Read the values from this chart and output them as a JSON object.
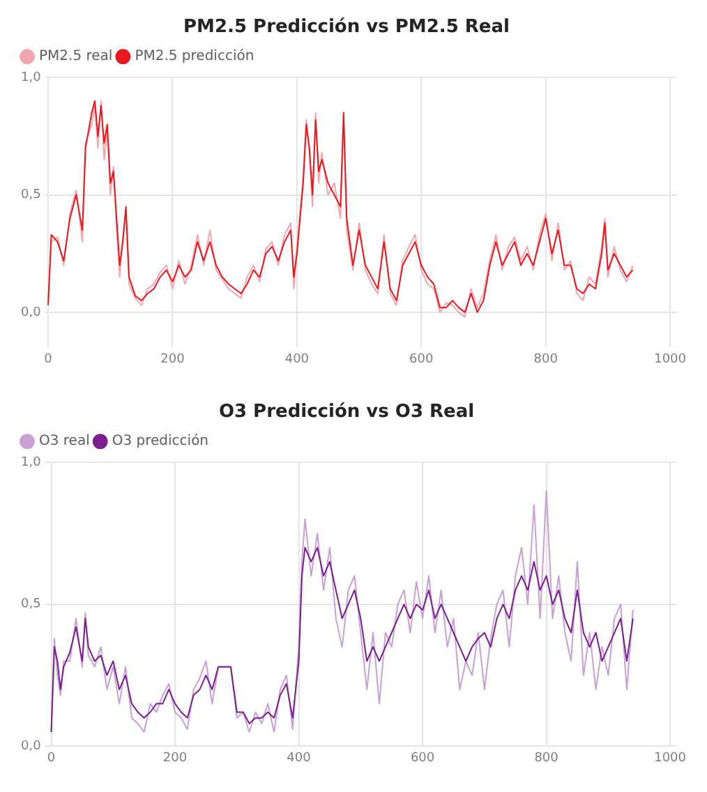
{
  "chart_data": [
    {
      "type": "line",
      "title": "PM2.5 Predicción vs PM2.5 Real",
      "legend": "top left",
      "grid": true,
      "marker": "none",
      "line_style": "solid",
      "x": [
        0,
        5,
        15,
        25,
        35,
        45,
        55,
        60,
        70,
        75,
        80,
        85,
        90,
        95,
        100,
        105,
        110,
        115,
        120,
        125,
        130,
        140,
        150,
        160,
        170,
        180,
        190,
        200,
        210,
        220,
        230,
        240,
        250,
        260,
        270,
        280,
        290,
        300,
        310,
        320,
        330,
        340,
        350,
        360,
        370,
        380,
        390,
        395,
        400,
        410,
        415,
        420,
        425,
        430,
        435,
        440,
        450,
        460,
        470,
        475,
        480,
        490,
        500,
        510,
        520,
        530,
        540,
        550,
        560,
        570,
        580,
        590,
        600,
        610,
        620,
        630,
        640,
        650,
        660,
        670,
        680,
        690,
        700,
        710,
        720,
        730,
        740,
        750,
        760,
        770,
        780,
        790,
        800,
        810,
        820,
        830,
        840,
        850,
        860,
        870,
        880,
        890,
        895,
        900,
        910,
        920,
        930,
        940
      ],
      "xlim": [
        -5,
        1010
      ],
      "xticks": [
        0,
        200,
        400,
        600,
        800,
        1000
      ],
      "ylim": [
        -0.15,
        1.0
      ],
      "yticks": [
        {
          "value": 0,
          "label": "0,0"
        },
        {
          "value": 0.5,
          "label": "0,5"
        },
        {
          "value": 1,
          "label": "1,0"
        }
      ],
      "series": [
        {
          "name": "PM2.5 real",
          "color": "#f2a7b0",
          "values": [
            0.05,
            0.3,
            0.32,
            0.2,
            0.42,
            0.52,
            0.3,
            0.72,
            0.8,
            0.88,
            0.7,
            0.9,
            0.65,
            0.78,
            0.5,
            0.62,
            0.35,
            0.15,
            0.32,
            0.42,
            0.12,
            0.06,
            0.03,
            0.1,
            0.12,
            0.17,
            0.2,
            0.1,
            0.22,
            0.12,
            0.2,
            0.33,
            0.2,
            0.35,
            0.18,
            0.14,
            0.1,
            0.08,
            0.06,
            0.15,
            0.2,
            0.13,
            0.27,
            0.3,
            0.2,
            0.33,
            0.38,
            0.1,
            0.28,
            0.58,
            0.82,
            0.68,
            0.45,
            0.85,
            0.55,
            0.68,
            0.5,
            0.55,
            0.4,
            0.83,
            0.35,
            0.18,
            0.38,
            0.18,
            0.12,
            0.08,
            0.33,
            0.08,
            0.03,
            0.22,
            0.28,
            0.33,
            0.18,
            0.12,
            0.1,
            0.0,
            0.04,
            0.03,
            0.0,
            -0.02,
            0.1,
            0.02,
            0.08,
            0.22,
            0.33,
            0.18,
            0.28,
            0.32,
            0.22,
            0.28,
            0.18,
            0.33,
            0.42,
            0.22,
            0.38,
            0.18,
            0.22,
            0.08,
            0.05,
            0.15,
            0.12,
            0.28,
            0.4,
            0.15,
            0.28,
            0.18,
            0.13,
            0.2
          ]
        },
        {
          "name": "PM2.5 predicción",
          "color": "#e8191e",
          "values": [
            0.03,
            0.33,
            0.3,
            0.22,
            0.4,
            0.5,
            0.35,
            0.7,
            0.85,
            0.9,
            0.75,
            0.88,
            0.72,
            0.8,
            0.55,
            0.6,
            0.4,
            0.2,
            0.3,
            0.45,
            0.15,
            0.07,
            0.05,
            0.08,
            0.1,
            0.15,
            0.18,
            0.13,
            0.2,
            0.15,
            0.18,
            0.3,
            0.22,
            0.3,
            0.2,
            0.15,
            0.12,
            0.1,
            0.08,
            0.12,
            0.18,
            0.15,
            0.25,
            0.28,
            0.22,
            0.3,
            0.35,
            0.15,
            0.25,
            0.55,
            0.8,
            0.7,
            0.5,
            0.82,
            0.6,
            0.65,
            0.55,
            0.5,
            0.45,
            0.85,
            0.4,
            0.2,
            0.35,
            0.2,
            0.15,
            0.1,
            0.3,
            0.1,
            0.05,
            0.2,
            0.25,
            0.3,
            0.2,
            0.15,
            0.12,
            0.02,
            0.02,
            0.05,
            0.02,
            0.0,
            0.08,
            0.0,
            0.05,
            0.2,
            0.3,
            0.2,
            0.25,
            0.3,
            0.2,
            0.25,
            0.2,
            0.3,
            0.4,
            0.25,
            0.35,
            0.2,
            0.2,
            0.1,
            0.08,
            0.12,
            0.1,
            0.25,
            0.38,
            0.18,
            0.25,
            0.2,
            0.15,
            0.18
          ]
        }
      ]
    },
    {
      "type": "line",
      "title": "O3 Predicción vs O3 Real",
      "legend": "top left",
      "grid": true,
      "marker": "none",
      "line_style": "solid",
      "x": [
        0,
        5,
        10,
        15,
        20,
        30,
        40,
        50,
        55,
        60,
        70,
        80,
        90,
        100,
        110,
        120,
        130,
        140,
        150,
        160,
        170,
        180,
        190,
        200,
        210,
        220,
        230,
        240,
        250,
        260,
        270,
        280,
        290,
        300,
        310,
        320,
        330,
        340,
        350,
        360,
        370,
        380,
        390,
        400,
        405,
        410,
        420,
        430,
        440,
        450,
        460,
        470,
        480,
        490,
        500,
        510,
        520,
        530,
        540,
        550,
        560,
        570,
        580,
        590,
        600,
        610,
        620,
        630,
        640,
        650,
        660,
        670,
        680,
        690,
        700,
        710,
        720,
        730,
        740,
        750,
        760,
        770,
        780,
        790,
        800,
        810,
        820,
        830,
        840,
        850,
        860,
        870,
        880,
        890,
        900,
        910,
        920,
        930,
        940
      ],
      "xlim": [
        -10,
        1010
      ],
      "xticks": [
        0,
        200,
        400,
        600,
        800,
        1000
      ],
      "ylim": [
        0,
        1.0
      ],
      "yticks": [
        {
          "value": 0,
          "label": "0,0"
        },
        {
          "value": 0.5,
          "label": "0,5"
        },
        {
          "value": 1,
          "label": "1,0"
        }
      ],
      "series": [
        {
          "name": "O3 real",
          "color": "#c89fd6",
          "values": [
            0.05,
            0.38,
            0.25,
            0.18,
            0.3,
            0.3,
            0.45,
            0.28,
            0.47,
            0.32,
            0.28,
            0.35,
            0.2,
            0.28,
            0.15,
            0.28,
            0.1,
            0.08,
            0.05,
            0.15,
            0.12,
            0.18,
            0.22,
            0.12,
            0.1,
            0.06,
            0.2,
            0.24,
            0.3,
            0.15,
            0.28,
            0.28,
            0.28,
            0.1,
            0.12,
            0.05,
            0.12,
            0.08,
            0.15,
            0.05,
            0.2,
            0.25,
            0.06,
            0.35,
            0.65,
            0.8,
            0.6,
            0.75,
            0.55,
            0.7,
            0.45,
            0.35,
            0.55,
            0.6,
            0.4,
            0.2,
            0.4,
            0.15,
            0.4,
            0.35,
            0.5,
            0.55,
            0.4,
            0.58,
            0.45,
            0.6,
            0.4,
            0.55,
            0.35,
            0.45,
            0.2,
            0.3,
            0.25,
            0.4,
            0.2,
            0.38,
            0.5,
            0.55,
            0.35,
            0.6,
            0.7,
            0.5,
            0.85,
            0.45,
            0.9,
            0.45,
            0.6,
            0.4,
            0.3,
            0.65,
            0.25,
            0.4,
            0.2,
            0.35,
            0.25,
            0.45,
            0.5,
            0.2,
            0.48
          ]
        },
        {
          "name": "O3 predicción",
          "color": "#7b1f8e",
          "values": [
            0.05,
            0.35,
            0.3,
            0.2,
            0.28,
            0.33,
            0.42,
            0.3,
            0.45,
            0.35,
            0.3,
            0.32,
            0.25,
            0.3,
            0.2,
            0.25,
            0.15,
            0.12,
            0.1,
            0.12,
            0.15,
            0.15,
            0.2,
            0.15,
            0.12,
            0.1,
            0.18,
            0.2,
            0.25,
            0.2,
            0.28,
            0.28,
            0.28,
            0.12,
            0.12,
            0.08,
            0.1,
            0.1,
            0.12,
            0.1,
            0.18,
            0.22,
            0.1,
            0.3,
            0.6,
            0.7,
            0.65,
            0.7,
            0.6,
            0.65,
            0.55,
            0.45,
            0.5,
            0.55,
            0.45,
            0.3,
            0.35,
            0.3,
            0.35,
            0.4,
            0.45,
            0.5,
            0.45,
            0.5,
            0.48,
            0.55,
            0.45,
            0.5,
            0.45,
            0.4,
            0.35,
            0.3,
            0.35,
            0.38,
            0.4,
            0.35,
            0.45,
            0.5,
            0.45,
            0.55,
            0.6,
            0.55,
            0.65,
            0.55,
            0.6,
            0.5,
            0.55,
            0.45,
            0.4,
            0.55,
            0.4,
            0.35,
            0.4,
            0.3,
            0.35,
            0.4,
            0.45,
            0.3,
            0.45
          ]
        }
      ]
    }
  ]
}
